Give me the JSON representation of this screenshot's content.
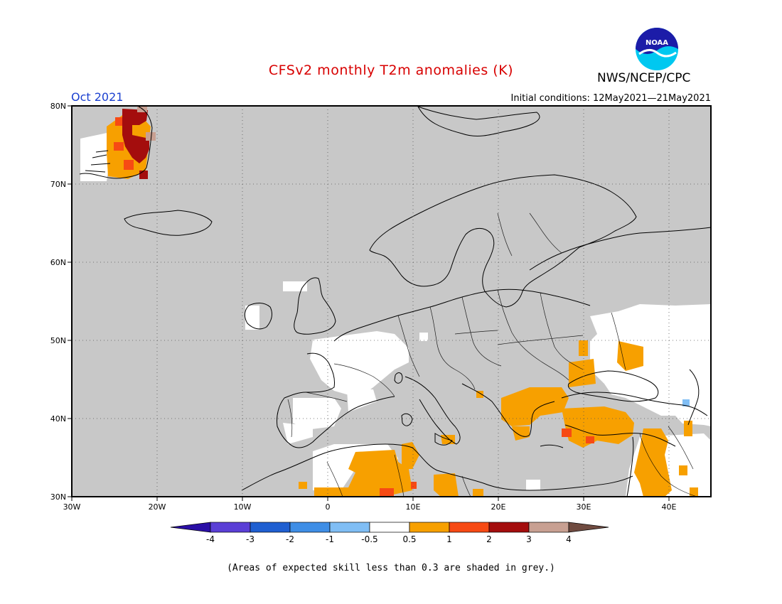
{
  "header": {
    "title": "CFSv2 monthly T2m anomalies (K)",
    "month": "Oct 2021",
    "initial_conditions": "Initial conditions: 12May2021—21May2021",
    "org": "NWS/NCEP/CPC",
    "logo_text": "NOAA"
  },
  "map": {
    "lon_range": [
      -30,
      45
    ],
    "lat_range": [
      30,
      80
    ],
    "grid": true,
    "lat_ticks": [
      "80N",
      "70N",
      "60N",
      "50N",
      "40N",
      "30N"
    ],
    "lon_ticks": [
      "30W",
      "20W",
      "10W",
      "0",
      "10E",
      "20E",
      "30E",
      "40E"
    ],
    "skill_mask_color": "#c8c8c8",
    "ocean_land_color": "#ffffff",
    "coast_color": "#000000"
  },
  "colorbar": {
    "labels": [
      "-4",
      "-3",
      "-2",
      "-1",
      "-0.5",
      "0.5",
      "1",
      "2",
      "3",
      "4"
    ],
    "colors": [
      "#2a0fa6",
      "#5a3fd6",
      "#1f5fd1",
      "#3f8ee6",
      "#80bef5",
      "#ffffff",
      "#f7a000",
      "#f74a14",
      "#a40d0d",
      "#c8a092",
      "#704b40"
    ]
  },
  "footnote": "(Areas of expected skill less than 0.3 are shaded in grey.)"
}
